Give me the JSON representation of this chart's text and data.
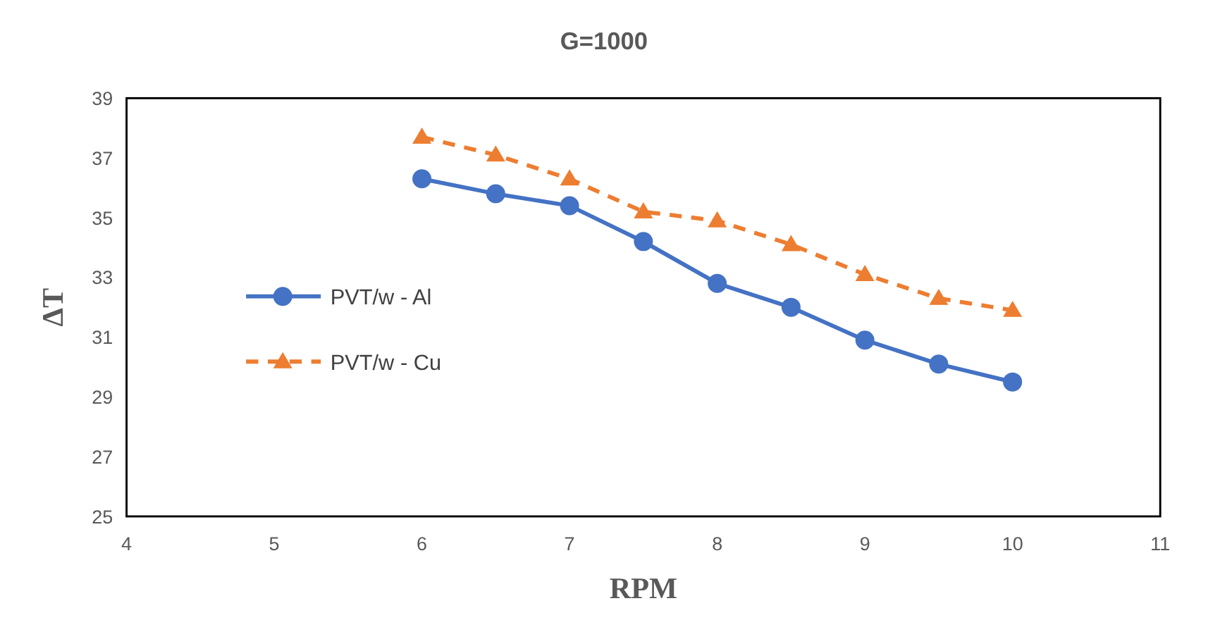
{
  "chart_data": {
    "type": "line",
    "title": "G=1000",
    "xlabel": "RPM",
    "ylabel": "ΔT",
    "x": [
      6,
      6.5,
      7,
      7.5,
      8,
      8.5,
      9,
      9.5,
      10
    ],
    "series": [
      {
        "name": "PVT/w - Al",
        "color": "#4472c4",
        "values": [
          36.3,
          35.8,
          35.4,
          34.2,
          32.8,
          32.0,
          30.9,
          30.1,
          29.5
        ],
        "marker": "circle",
        "line_style": "solid"
      },
      {
        "name": "PVT/w - Cu",
        "color": "#ed7d31",
        "values": [
          37.7,
          37.1,
          36.3,
          35.2,
          34.9,
          34.1,
          33.1,
          32.3,
          31.9
        ],
        "marker": "triangle",
        "line_style": "dashed"
      }
    ],
    "xlim": [
      4,
      11
    ],
    "xticks": [
      4,
      5,
      6,
      7,
      8,
      9,
      10,
      11
    ],
    "ylim": [
      25,
      39
    ],
    "yticks": [
      25,
      27,
      29,
      31,
      33,
      35,
      37,
      39
    ],
    "grid": false,
    "legend": "left"
  }
}
